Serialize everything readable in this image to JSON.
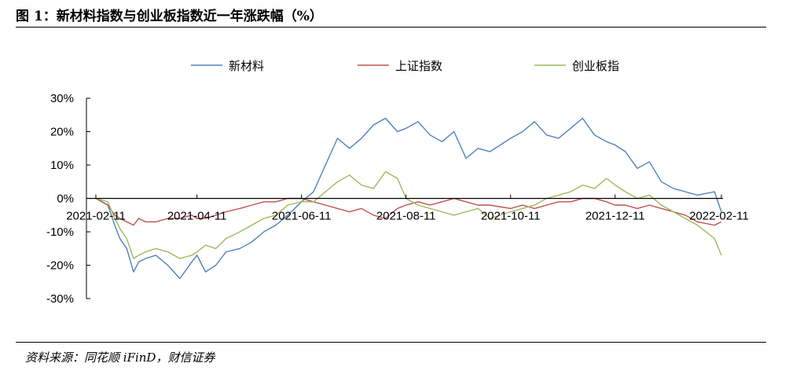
{
  "header": {
    "title": "图 1：新材料指数与创业板指数近一年涨跌幅（%）"
  },
  "footer": {
    "source": "资料来源：同花顺 iFinD，财信证券"
  },
  "chart_data": {
    "type": "line",
    "title": "图 1：新材料指数与创业板指数近一年涨跌幅（%）",
    "xlabel": "",
    "ylabel": "",
    "ylim": [
      -30,
      30
    ],
    "y_ticks": [
      30,
      20,
      10,
      0,
      -10,
      -20,
      -30
    ],
    "y_tick_labels": [
      "30%",
      "20%",
      "10%",
      "0%",
      "-10%",
      "-20%",
      "-30%"
    ],
    "x_tick_labels": [
      "2021-02-11",
      "2021-04-11",
      "2021-06-11",
      "2021-08-11",
      "2021-10-11",
      "2021-12-11",
      "2022-02-11"
    ],
    "legend_position": "top",
    "grid": false,
    "x": [
      "2021-02-11",
      "2021-02-18",
      "2021-02-22",
      "2021-02-25",
      "2021-03-01",
      "2021-03-05",
      "2021-03-08",
      "2021-03-12",
      "2021-03-18",
      "2021-03-25",
      "2021-04-01",
      "2021-04-08",
      "2021-04-11",
      "2021-04-16",
      "2021-04-22",
      "2021-04-28",
      "2021-05-06",
      "2021-05-13",
      "2021-05-20",
      "2021-05-27",
      "2021-06-03",
      "2021-06-11",
      "2021-06-18",
      "2021-06-25",
      "2021-07-02",
      "2021-07-09",
      "2021-07-16",
      "2021-07-23",
      "2021-07-30",
      "2021-08-06",
      "2021-08-11",
      "2021-08-18",
      "2021-08-25",
      "2021-09-01",
      "2021-09-08",
      "2021-09-15",
      "2021-09-22",
      "2021-09-29",
      "2021-10-11",
      "2021-10-18",
      "2021-10-25",
      "2021-11-01",
      "2021-11-08",
      "2021-11-15",
      "2021-11-22",
      "2021-11-29",
      "2021-12-06",
      "2021-12-11",
      "2021-12-17",
      "2021-12-24",
      "2021-12-31",
      "2022-01-07",
      "2022-01-14",
      "2022-01-21",
      "2022-01-28",
      "2022-02-07",
      "2022-02-11"
    ],
    "series": [
      {
        "name": "新材料",
        "color": "#4F81BD",
        "values": [
          0,
          -2,
          -8,
          -12,
          -15,
          -22,
          -19,
          -18,
          -17,
          -20,
          -24,
          -19,
          -17,
          -22,
          -20,
          -16,
          -15,
          -13,
          -10,
          -8,
          -5,
          -1,
          2,
          10,
          18,
          15,
          18,
          22,
          24,
          20,
          21,
          23,
          19,
          17,
          20,
          12,
          15,
          14,
          18,
          20,
          23,
          19,
          18,
          21,
          24,
          19,
          17,
          16,
          14,
          9,
          11,
          5,
          3,
          2,
          1,
          2,
          -4
        ]
      },
      {
        "name": "上证指数",
        "color": "#C0504D",
        "values": [
          0,
          -2,
          -5,
          -6,
          -7,
          -8,
          -6,
          -7,
          -7,
          -6,
          -6,
          -5,
          -6,
          -6,
          -5,
          -4,
          -3,
          -2,
          -1,
          -1,
          0,
          0,
          -1,
          -2,
          -3,
          -4,
          -3,
          -5,
          -6,
          -3,
          -2,
          -1,
          -2,
          -1,
          0,
          -1,
          -2,
          -2,
          -3,
          -2,
          -3,
          -2,
          -1,
          -1,
          0,
          0,
          -1,
          -2,
          -2,
          -3,
          -2,
          -3,
          -4,
          -5,
          -7,
          -8,
          -7
        ]
      },
      {
        "name": "创业板指",
        "color": "#9BBB59",
        "values": [
          0,
          -1,
          -6,
          -9,
          -12,
          -18,
          -17,
          -16,
          -15,
          -16,
          -18,
          -17,
          -16,
          -14,
          -15,
          -12,
          -10,
          -8,
          -6,
          -5,
          -2,
          -1,
          -1,
          2,
          5,
          7,
          4,
          3,
          8,
          6,
          0,
          -2,
          -3,
          -4,
          -5,
          -4,
          -3,
          -6,
          -4,
          -3,
          -2,
          0,
          1,
          2,
          4,
          3,
          6,
          4,
          2,
          0,
          1,
          -2,
          -4,
          -6,
          -8,
          -12,
          -17
        ]
      }
    ]
  }
}
